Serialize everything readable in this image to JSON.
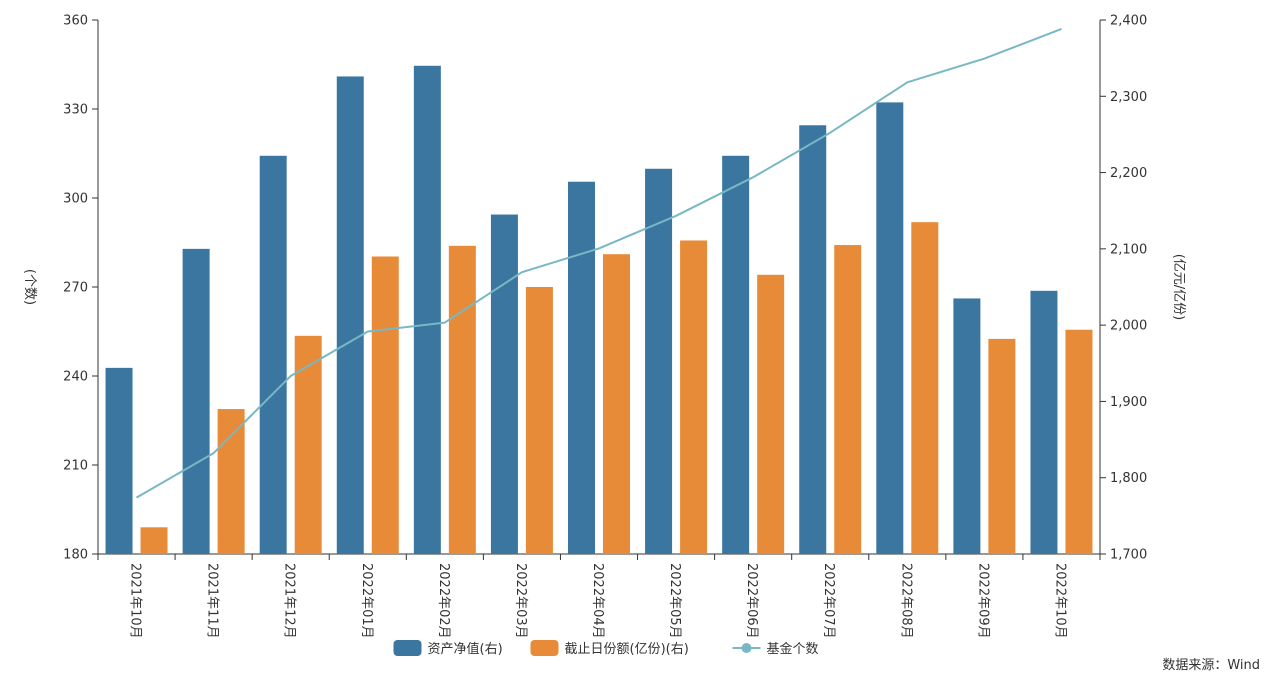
{
  "chart_data": {
    "type": "bar",
    "categories": [
      "2021年10月",
      "2021年11月",
      "2021年12月",
      "2022年01月",
      "2022年02月",
      "2022年03月",
      "2022年04月",
      "2022年05月",
      "2022年06月",
      "2022年07月",
      "2022年08月",
      "2022年09月",
      "2022年10月"
    ],
    "series": [
      {
        "name": "资产净值(右)",
        "type": "bar",
        "axis": "right",
        "color": "#3a76a0",
        "values": [
          1944,
          2100,
          2222,
          2326,
          2340,
          2145,
          2188,
          2205,
          2222,
          2262,
          2292,
          2035,
          2045
        ]
      },
      {
        "name": "截止日份额(亿份)(右)",
        "type": "bar",
        "axis": "right",
        "color": "#e88b38",
        "values": [
          1735,
          1890,
          1986,
          2090,
          2104,
          2050,
          2093,
          2111,
          2066,
          2105,
          2135,
          1982,
          1994
        ]
      },
      {
        "name": "基金个数",
        "type": "line",
        "axis": "left",
        "color": "#78b8c4",
        "values": [
          199,
          214,
          240,
          255,
          258,
          275,
          283,
          294,
          307,
          322,
          339,
          347,
          357
        ]
      }
    ],
    "yleft": {
      "label": "(个数)",
      "min": 180,
      "max": 360,
      "ticks": [
        "180",
        "210",
        "240",
        "270",
        "300",
        "330",
        "360"
      ]
    },
    "yright": {
      "label": "(亿元/亿份)",
      "min": 1700,
      "max": 2400,
      "ticks": [
        "1,700",
        "1,800",
        "1,900",
        "2,000",
        "2,100",
        "2,200",
        "2,300",
        "2,400"
      ]
    },
    "grid": false,
    "legend_position": "bottom-center"
  },
  "source_note": "数据来源：Wind"
}
